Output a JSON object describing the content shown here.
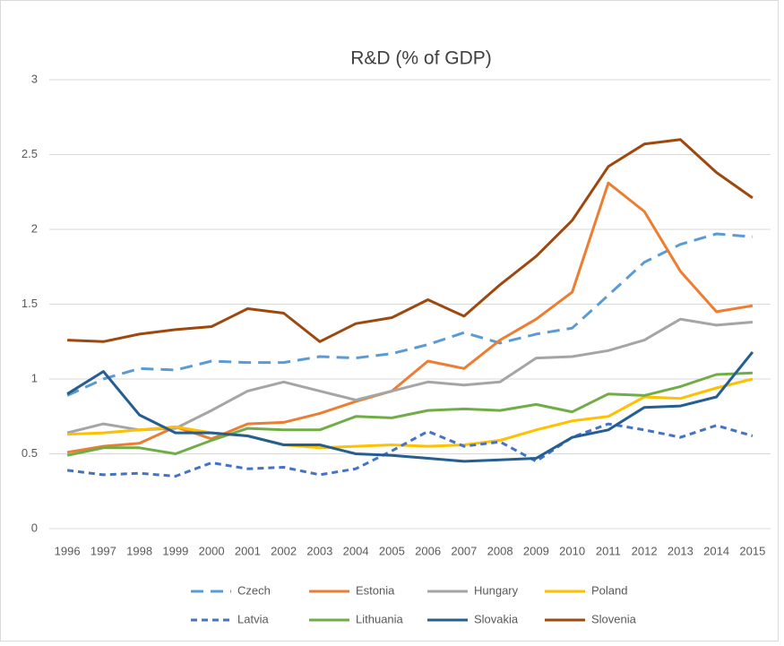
{
  "chart_data": {
    "type": "line",
    "title": "R&D (% of GDP)",
    "categories": [
      "1996",
      "1997",
      "1998",
      "1999",
      "2000",
      "2001",
      "2002",
      "2003",
      "2004",
      "2005",
      "2006",
      "2007",
      "2008",
      "2009",
      "2010",
      "2011",
      "2012",
      "2013",
      "2014",
      "2015"
    ],
    "series": [
      {
        "name": "Czech",
        "color": "#5b9bd5",
        "dash": "long",
        "values": [
          0.89,
          1.0,
          1.07,
          1.06,
          1.12,
          1.11,
          1.11,
          1.15,
          1.14,
          1.17,
          1.23,
          1.31,
          1.24,
          1.3,
          1.34,
          1.56,
          1.78,
          1.9,
          1.97,
          1.95
        ]
      },
      {
        "name": "Estonia",
        "color": "#ed7d31",
        "values": [
          0.51,
          0.55,
          0.57,
          0.68,
          0.6,
          0.7,
          0.71,
          0.77,
          0.85,
          0.92,
          1.12,
          1.07,
          1.26,
          1.4,
          1.58,
          2.31,
          2.12,
          1.72,
          1.45,
          1.49
        ]
      },
      {
        "name": "Hungary",
        "color": "#a5a5a5",
        "values": [
          0.64,
          0.7,
          0.66,
          0.67,
          0.79,
          0.92,
          0.98,
          0.92,
          0.86,
          0.92,
          0.98,
          0.96,
          0.98,
          1.14,
          1.15,
          1.19,
          1.26,
          1.4,
          1.36,
          1.38
        ]
      },
      {
        "name": "Poland",
        "color": "#ffc000",
        "values": [
          0.63,
          0.64,
          0.66,
          0.68,
          0.64,
          0.62,
          0.56,
          0.54,
          0.55,
          0.56,
          0.55,
          0.56,
          0.59,
          0.66,
          0.72,
          0.75,
          0.88,
          0.87,
          0.94,
          1.0
        ]
      },
      {
        "name": "Latvia",
        "color": "#4472c4",
        "dash": "short",
        "values": [
          0.39,
          0.36,
          0.37,
          0.35,
          0.44,
          0.4,
          0.41,
          0.36,
          0.4,
          0.52,
          0.65,
          0.55,
          0.58,
          0.45,
          0.61,
          0.7,
          0.66,
          0.61,
          0.69,
          0.62
        ]
      },
      {
        "name": "Lithuania",
        "color": "#70ad47",
        "values": [
          0.49,
          0.54,
          0.54,
          0.5,
          0.59,
          0.67,
          0.66,
          0.66,
          0.75,
          0.74,
          0.79,
          0.8,
          0.79,
          0.83,
          0.78,
          0.9,
          0.89,
          0.95,
          1.03,
          1.04
        ]
      },
      {
        "name": "Slovakia",
        "color": "#255e91",
        "values": [
          0.9,
          1.05,
          0.76,
          0.64,
          0.64,
          0.62,
          0.56,
          0.56,
          0.5,
          0.49,
          0.47,
          0.45,
          0.46,
          0.47,
          0.61,
          0.66,
          0.81,
          0.82,
          0.88,
          1.18
        ]
      },
      {
        "name": "Slovenia",
        "color": "#9e480e",
        "values": [
          1.26,
          1.25,
          1.3,
          1.33,
          1.35,
          1.47,
          1.44,
          1.25,
          1.37,
          1.41,
          1.53,
          1.42,
          1.63,
          1.82,
          2.06,
          2.42,
          2.57,
          2.6,
          2.38,
          2.21
        ]
      }
    ],
    "ylim": [
      0,
      3
    ],
    "yticks": [
      0,
      0.5,
      1,
      1.5,
      2,
      2.5,
      3
    ],
    "grid": true,
    "legend": "bottom"
  }
}
